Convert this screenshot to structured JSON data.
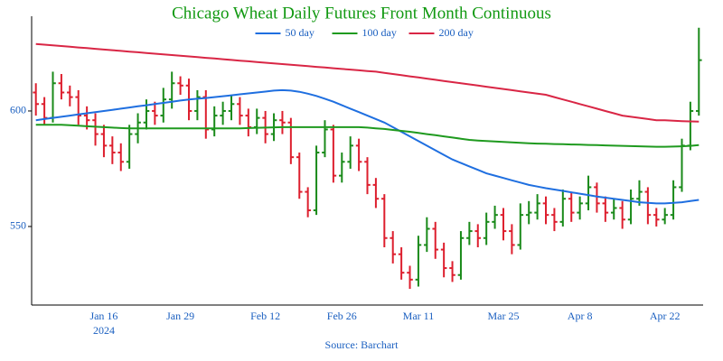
{
  "chart_data": {
    "type": "ohlc",
    "title": "Chicago Wheat Daily Futures Front Month Continuous",
    "source": "Source: Barchart",
    "year_label": "2024",
    "categories": [
      null,
      null,
      null,
      null,
      null,
      null,
      null,
      null,
      "Jan 16",
      null,
      null,
      null,
      null,
      null,
      null,
      null,
      null,
      "Jan 29",
      null,
      null,
      null,
      null,
      null,
      null,
      null,
      null,
      null,
      "Feb 12",
      null,
      null,
      null,
      null,
      null,
      null,
      null,
      null,
      "Feb 26",
      null,
      null,
      null,
      null,
      null,
      null,
      null,
      null,
      "Mar 11",
      null,
      null,
      null,
      null,
      null,
      null,
      null,
      null,
      null,
      "Mar 25",
      null,
      null,
      null,
      null,
      null,
      null,
      null,
      null,
      "Apr 8",
      null,
      null,
      null,
      null,
      null,
      null,
      null,
      null,
      null,
      "Apr 22",
      null,
      null,
      null,
      null
    ],
    "open": [
      608,
      603,
      597,
      612,
      608,
      606,
      598,
      596,
      590,
      585,
      582,
      578,
      590,
      595,
      600,
      598,
      605,
      612,
      611,
      600,
      606,
      592,
      598,
      600,
      603,
      598,
      593,
      597,
      590,
      596,
      595,
      580,
      565,
      557,
      582,
      592,
      572,
      578,
      585,
      578,
      568,
      562,
      545,
      538,
      530,
      527,
      542,
      549,
      540,
      532,
      529,
      545,
      548,
      545,
      552,
      555,
      548,
      542,
      555,
      556,
      560,
      555,
      552,
      562,
      556,
      560,
      567,
      560,
      556,
      558,
      553,
      562,
      565,
      555,
      553,
      555,
      567,
      585,
      600
    ],
    "high": [
      612,
      606,
      617,
      616,
      611,
      609,
      602,
      599,
      594,
      589,
      586,
      594,
      599,
      605,
      604,
      610,
      617,
      615,
      614,
      609,
      609,
      602,
      604,
      607,
      606,
      601,
      601,
      600,
      599,
      600,
      597,
      582,
      567,
      585,
      596,
      594,
      582,
      589,
      588,
      580,
      571,
      564,
      548,
      541,
      533,
      546,
      554,
      552,
      543,
      535,
      548,
      552,
      551,
      556,
      559,
      558,
      551,
      560,
      561,
      564,
      563,
      558,
      566,
      565,
      563,
      572,
      569,
      563,
      562,
      561,
      566,
      570,
      567,
      558,
      558,
      570,
      588,
      604,
      636
    ],
    "low": [
      598,
      594,
      595,
      605,
      602,
      594,
      592,
      585,
      580,
      577,
      574,
      575,
      586,
      592,
      594,
      595,
      601,
      607,
      596,
      596,
      588,
      589,
      594,
      596,
      594,
      589,
      590,
      586,
      587,
      590,
      577,
      562,
      554,
      555,
      580,
      569,
      569,
      575,
      574,
      564,
      558,
      541,
      534,
      527,
      523,
      524,
      539,
      536,
      528,
      526,
      527,
      542,
      541,
      542,
      549,
      544,
      538,
      540,
      551,
      553,
      551,
      548,
      550,
      552,
      553,
      557,
      556,
      552,
      553,
      549,
      551,
      559,
      551,
      550,
      551,
      553,
      565,
      583,
      598
    ],
    "close": [
      603,
      597,
      612,
      608,
      606,
      598,
      596,
      590,
      585,
      582,
      578,
      590,
      595,
      600,
      598,
      605,
      612,
      611,
      600,
      606,
      592,
      598,
      600,
      603,
      598,
      593,
      597,
      590,
      596,
      595,
      580,
      565,
      557,
      582,
      592,
      572,
      578,
      585,
      578,
      568,
      562,
      545,
      538,
      530,
      527,
      542,
      549,
      540,
      532,
      529,
      545,
      548,
      545,
      552,
      555,
      548,
      542,
      555,
      556,
      560,
      555,
      552,
      562,
      556,
      560,
      567,
      560,
      556,
      558,
      553,
      562,
      565,
      555,
      553,
      555,
      567,
      585,
      600,
      622
    ],
    "up_color": "#1a8a1a",
    "down_color": "#dd1f2e",
    "series": [
      {
        "name": "50 day",
        "color": "#1f6fe0",
        "values": [
          596,
          596.5,
          597,
          597.5,
          598,
          598.5,
          599,
          599.5,
          600,
          600.5,
          601,
          601.5,
          602,
          602.5,
          603,
          603.5,
          604,
          604.5,
          605,
          605.3,
          605.6,
          606,
          606.4,
          606.8,
          607.2,
          607.6,
          608,
          608.4,
          608.8,
          609,
          608.8,
          608.3,
          607.5,
          606.5,
          605.3,
          604,
          602.5,
          601,
          599.5,
          598,
          596.5,
          595,
          593,
          591,
          589,
          587,
          585,
          583,
          581,
          579,
          577.5,
          576,
          574.5,
          573,
          572,
          571,
          570,
          569,
          568,
          567.3,
          566.6,
          566,
          565.4,
          564.8,
          564.2,
          563.6,
          563,
          562.5,
          562,
          561.5,
          561,
          560.5,
          560.2,
          560,
          560,
          560.2,
          560.5,
          561,
          561.5
        ]
      },
      {
        "name": "100 day",
        "color": "#1f9a1f",
        "values": [
          594,
          594,
          594,
          594,
          593.8,
          593.6,
          593.4,
          593.2,
          593,
          592.8,
          592.6,
          592.5,
          592.5,
          592.5,
          592.5,
          592.5,
          592.5,
          592.5,
          592.5,
          592.5,
          592.5,
          592.5,
          592.5,
          592.5,
          592.5,
          592.6,
          592.7,
          592.8,
          592.9,
          593,
          593,
          593,
          593,
          593,
          593,
          593,
          593,
          593,
          593,
          592.8,
          592.5,
          592.2,
          591.8,
          591.4,
          591,
          590.5,
          590,
          589.5,
          589,
          588.5,
          588,
          587.5,
          587.2,
          587,
          586.8,
          586.6,
          586.4,
          586.2,
          586,
          585.9,
          585.8,
          585.7,
          585.6,
          585.5,
          585.4,
          585.3,
          585.2,
          585.1,
          585,
          584.9,
          584.8,
          584.7,
          584.6,
          584.5,
          584.5,
          584.6,
          584.7,
          584.9,
          585.2
        ]
      },
      {
        "name": "200 day",
        "color": "#d92645",
        "values": [
          629,
          628.7,
          628.4,
          628.1,
          627.8,
          627.5,
          627.2,
          626.9,
          626.6,
          626.3,
          626,
          625.7,
          625.4,
          625.1,
          624.8,
          624.5,
          624.2,
          623.9,
          623.6,
          623.3,
          623,
          622.7,
          622.4,
          622.1,
          621.8,
          621.5,
          621.2,
          620.9,
          620.6,
          620.3,
          620,
          619.7,
          619.4,
          619.1,
          618.8,
          618.5,
          618.2,
          617.9,
          617.6,
          617.3,
          617,
          616.5,
          616,
          615.5,
          615,
          614.5,
          614,
          613.5,
          613,
          612.5,
          612,
          611.5,
          611,
          610.5,
          610,
          609.5,
          609,
          608.5,
          608,
          607.5,
          607,
          606,
          605,
          604,
          603,
          602,
          601,
          600,
          599,
          598,
          597.5,
          597,
          596.5,
          596,
          596,
          595.8,
          595.6,
          595.5,
          595.4
        ]
      }
    ],
    "ylim": [
      516,
      641
    ],
    "yticks": [
      550,
      600
    ],
    "legend": "top"
  }
}
